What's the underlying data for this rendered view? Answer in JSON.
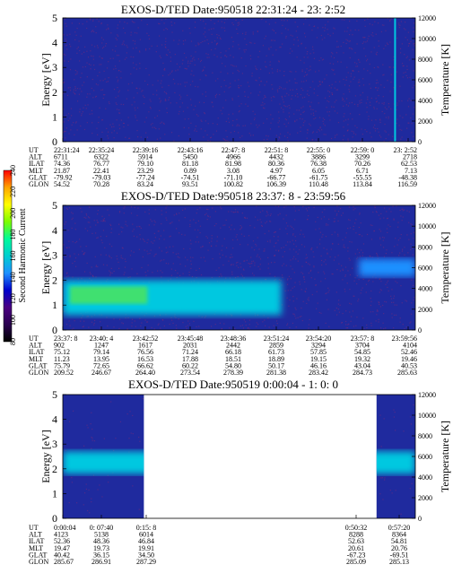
{
  "colorbar": {
    "label": "Second Harmonic Current",
    "ticks": [
      "80",
      "100",
      "120",
      "140",
      "160",
      "180",
      "200",
      "220",
      "240"
    ],
    "colors": [
      "#000000",
      "#2a0050",
      "#4b0082",
      "#0000cd",
      "#1e90ff",
      "#00ced1",
      "#00fa9a",
      "#7cfc00",
      "#ffff00",
      "#ffa500",
      "#ff0000"
    ]
  },
  "palette": {
    "bg": "#1f2a9e",
    "noise": "#7a2a7a",
    "cyan": "#00c8e0",
    "green": "#40e070"
  },
  "chart_data": [
    {
      "type": "heatmap",
      "title": "EXOS-D/TED   Date:950518  22:31:24 - 23: 2:52",
      "ylabel": "Energy [eV]",
      "y2label": "Temperature [K]",
      "yticks": [
        "0",
        "1",
        "2",
        "3",
        "4",
        "5"
      ],
      "y2ticks": [
        "0",
        "2000",
        "4000",
        "6000",
        "8000",
        "10000",
        "12000"
      ],
      "ylim": [
        0,
        5
      ],
      "y2lim": [
        0,
        12000
      ],
      "rows": [
        "UT",
        "ALT",
        "ILAT",
        "MLT",
        "GLAT",
        "GLON"
      ],
      "columns": [
        [
          "22:31:24",
          "6711",
          "74.36",
          "21.87",
          "-79.92",
          "54.52"
        ],
        [
          "22:35:24",
          "6322",
          "76.77",
          "22.41",
          "-79.03",
          "70.28"
        ],
        [
          "22:39:16",
          "5914",
          "79.10",
          "23.29",
          "-77.24",
          "83.24"
        ],
        [
          "22:43:16",
          "5450",
          "81.18",
          "0.89",
          "-74.51",
          "93.51"
        ],
        [
          "22:47: 8",
          "4966",
          "81.98",
          "3.08",
          "-71.10",
          "100.82"
        ],
        [
          "22:51: 8",
          "4432",
          "80.36",
          "4.97",
          "-66.77",
          "106.39"
        ],
        [
          "22:55: 0",
          "3886",
          "76.38",
          "6.05",
          "-61.75",
          "110.48"
        ],
        [
          "22:59: 0",
          "3299",
          "70.26",
          "6.71",
          "-55.55",
          "113.84"
        ],
        [
          "23: 2:52",
          "2718",
          "62.53",
          "7.13",
          "-48.38",
          "116.59"
        ]
      ],
      "features": [
        {
          "kind": "vertical-line",
          "x_fraction": 0.94,
          "color": "#00c8e0"
        }
      ]
    },
    {
      "type": "heatmap",
      "title": "EXOS-D/TED   Date:950518  23:37: 8 - 23:59:56",
      "ylabel": "Energy [eV]",
      "y2label": "Temperature [K]",
      "yticks": [
        "0",
        "1",
        "2",
        "3",
        "4",
        "5"
      ],
      "y2ticks": [
        "0",
        "2000",
        "4000",
        "6000",
        "8000",
        "10000",
        "12000"
      ],
      "ylim": [
        0,
        5
      ],
      "y2lim": [
        0,
        12000
      ],
      "rows": [
        "UT",
        "ALT",
        "ILAT",
        "MLT",
        "GLAT",
        "GLON"
      ],
      "columns": [
        [
          "23:37: 8",
          "902",
          "75.12",
          "11.23",
          "75.79",
          "209.52"
        ],
        [
          "23:40: 4",
          "1247",
          "79.14",
          "13.95",
          "72.65",
          "246.67"
        ],
        [
          "23:42:52",
          "1617",
          "76.56",
          "16.53",
          "66.62",
          "264.40"
        ],
        [
          "23:45:48",
          "2031",
          "71.24",
          "17.88",
          "60.22",
          "273.54"
        ],
        [
          "23:48:36",
          "2442",
          "66.18",
          "18.51",
          "54.80",
          "278.39"
        ],
        [
          "23:51:24",
          "2859",
          "61.73",
          "18.89",
          "50.17",
          "281.38"
        ],
        [
          "23:54:20",
          "3294",
          "57.85",
          "19.15",
          "46.16",
          "283.42"
        ],
        [
          "23:57: 8",
          "3704",
          "54.85",
          "19.32",
          "43.04",
          "284.73"
        ],
        [
          "23:59:56",
          "4104",
          "52.46",
          "19.46",
          "40.53",
          "285.63"
        ]
      ],
      "features": [
        {
          "kind": "band",
          "x_from": 0.0,
          "x_to": 0.62,
          "y_center_eV": 1.3,
          "y_halfwidth_eV": 0.7,
          "color": "#00c8e0"
        },
        {
          "kind": "core",
          "x_from": 0.02,
          "x_to": 0.24,
          "y_center_eV": 1.4,
          "y_halfwidth_eV": 0.35,
          "color": "#40e070"
        },
        {
          "kind": "band",
          "x_from": 0.84,
          "x_to": 1.0,
          "y_center_eV": 2.5,
          "y_halfwidth_eV": 0.35,
          "color": "#1e90ff"
        }
      ]
    },
    {
      "type": "heatmap",
      "title": "EXOS-D/TED   Date:950519  0:00:04 - 1: 0: 0",
      "ylabel": "Energy [eV]",
      "y2label": "Temperature [K]",
      "yticks": [
        "0",
        "1",
        "2",
        "3",
        "4",
        "5"
      ],
      "y2ticks": [
        "0",
        "2000",
        "4000",
        "6000",
        "8000",
        "10000",
        "12000"
      ],
      "ylim": [
        0,
        5
      ],
      "y2lim": [
        0,
        12000
      ],
      "rows": [
        "UT",
        "ALT",
        "ILAT",
        "MLT",
        "GLAT",
        "GLON"
      ],
      "columns": [
        [
          "0:00:04",
          "4123",
          "52.36",
          "19.47",
          "40.42",
          "285.67"
        ],
        [
          "0: 07:40",
          "5138",
          "48.36",
          "19.73",
          "36.15",
          "286.91"
        ],
        [
          "0:15: 8",
          "6014",
          "46.84",
          "19.91",
          "34.50",
          "287.29"
        ],
        [
          "0:50:32",
          "8288",
          "52.63",
          "20.61",
          "-67.23",
          "285.09"
        ],
        [
          "0:57:20",
          "8364",
          "54.81",
          "20.76",
          "-69.51",
          "285.13"
        ]
      ],
      "data_segments": [
        [
          0.0,
          0.23
        ],
        [
          0.89,
          1.0
        ]
      ],
      "features": [
        {
          "kind": "band",
          "y_center_eV": 2.25,
          "y_halfwidth_eV": 0.45,
          "color": "#00c8e0"
        }
      ]
    }
  ]
}
